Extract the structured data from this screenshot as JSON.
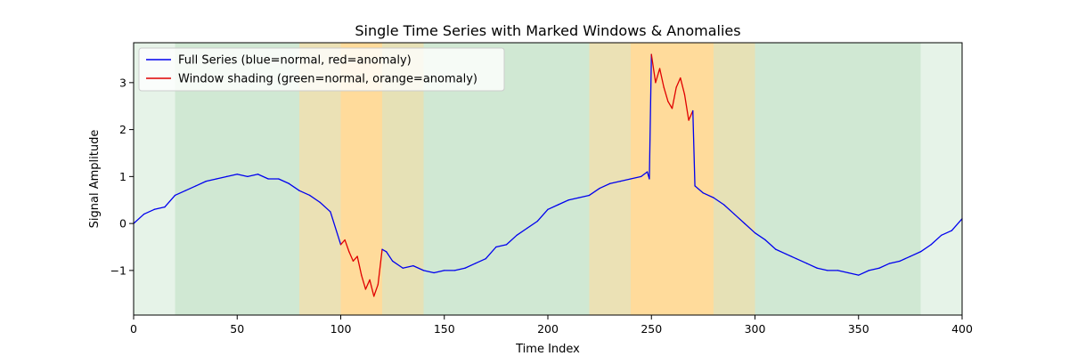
{
  "chart_data": {
    "type": "line",
    "title": "Single Time Series with Marked Windows & Anomalies",
    "xlabel": "Time Index",
    "ylabel": "Signal Amplitude",
    "xlim": [
      0,
      400
    ],
    "ylim": [
      -1.95,
      3.85
    ],
    "xticks": [
      0,
      50,
      100,
      150,
      200,
      250,
      300,
      350,
      400
    ],
    "yticks": [
      -1,
      0,
      1,
      2,
      3
    ],
    "grid": false,
    "legend": {
      "placement": "top-left",
      "entries": [
        {
          "label": "Full Series (blue=normal, red=anomaly)",
          "color": "#0000ee"
        },
        {
          "label": "Window shading (green=normal, orange=anomaly)",
          "color": "#e00000"
        }
      ]
    },
    "colors": {
      "normal_line": "#0000ee",
      "anomaly_line": "#e00000",
      "normal_window": "#2e9e3e",
      "anomaly_window": "#ffa500"
    },
    "windows": [
      {
        "start": 0,
        "end": 40,
        "label": "normal"
      },
      {
        "start": 20,
        "end": 60,
        "label": "normal"
      },
      {
        "start": 40,
        "end": 80,
        "label": "normal"
      },
      {
        "start": 60,
        "end": 100,
        "label": "normal"
      },
      {
        "start": 80,
        "end": 120,
        "label": "anomaly"
      },
      {
        "start": 100,
        "end": 140,
        "label": "anomaly"
      },
      {
        "start": 120,
        "end": 160,
        "label": "normal"
      },
      {
        "start": 140,
        "end": 180,
        "label": "normal"
      },
      {
        "start": 160,
        "end": 200,
        "label": "normal"
      },
      {
        "start": 180,
        "end": 220,
        "label": "normal"
      },
      {
        "start": 200,
        "end": 240,
        "label": "normal"
      },
      {
        "start": 220,
        "end": 260,
        "label": "anomaly"
      },
      {
        "start": 240,
        "end": 280,
        "label": "anomaly"
      },
      {
        "start": 260,
        "end": 300,
        "label": "anomaly"
      },
      {
        "start": 280,
        "end": 320,
        "label": "normal"
      },
      {
        "start": 300,
        "end": 340,
        "label": "normal"
      },
      {
        "start": 320,
        "end": 360,
        "label": "normal"
      },
      {
        "start": 340,
        "end": 380,
        "label": "normal"
      },
      {
        "start": 360,
        "end": 400,
        "label": "normal"
      }
    ],
    "anomaly_ranges": [
      [
        100,
        120
      ],
      [
        250,
        270
      ]
    ],
    "series": [
      {
        "x": [
          0,
          5,
          10,
          15,
          20,
          25,
          30,
          35,
          40,
          45,
          50,
          55,
          60,
          65,
          70,
          75,
          80,
          85,
          90,
          95,
          100,
          102,
          104,
          106,
          108,
          110,
          112,
          114,
          116,
          118,
          120,
          122,
          125,
          130,
          135,
          140,
          145,
          150,
          155,
          160,
          165,
          170,
          175,
          180,
          185,
          190,
          195,
          200,
          205,
          210,
          215,
          220,
          225,
          230,
          235,
          240,
          245,
          248,
          249,
          250,
          252,
          254,
          256,
          258,
          260,
          262,
          264,
          266,
          268,
          270,
          271,
          275,
          280,
          285,
          290,
          295,
          300,
          305,
          310,
          315,
          320,
          325,
          330,
          335,
          340,
          345,
          350,
          355,
          360,
          365,
          370,
          375,
          380,
          385,
          390,
          395,
          400
        ],
        "y": [
          0.0,
          0.2,
          0.3,
          0.35,
          0.6,
          0.7,
          0.8,
          0.9,
          0.95,
          1.0,
          1.05,
          1.0,
          1.05,
          0.95,
          0.95,
          0.85,
          0.7,
          0.6,
          0.45,
          0.25,
          -0.45,
          -0.35,
          -0.6,
          -0.8,
          -0.7,
          -1.1,
          -1.4,
          -1.2,
          -1.55,
          -1.3,
          -0.55,
          -0.6,
          -0.8,
          -0.95,
          -0.9,
          -1.0,
          -1.05,
          -1.0,
          -1.0,
          -0.95,
          -0.85,
          -0.75,
          -0.5,
          -0.45,
          -0.25,
          -0.1,
          0.05,
          0.3,
          0.4,
          0.5,
          0.55,
          0.6,
          0.75,
          0.85,
          0.9,
          0.95,
          1.0,
          1.1,
          0.95,
          3.6,
          3.0,
          3.3,
          2.9,
          2.6,
          2.45,
          2.9,
          3.1,
          2.75,
          2.2,
          2.4,
          0.8,
          0.65,
          0.55,
          0.4,
          0.2,
          0.0,
          -0.2,
          -0.35,
          -0.55,
          -0.65,
          -0.75,
          -0.85,
          -0.95,
          -1.0,
          -1.0,
          -1.05,
          -1.1,
          -1.0,
          -0.95,
          -0.85,
          -0.8,
          -0.7,
          -0.6,
          -0.45,
          -0.25,
          -0.15,
          0.1
        ]
      }
    ]
  }
}
